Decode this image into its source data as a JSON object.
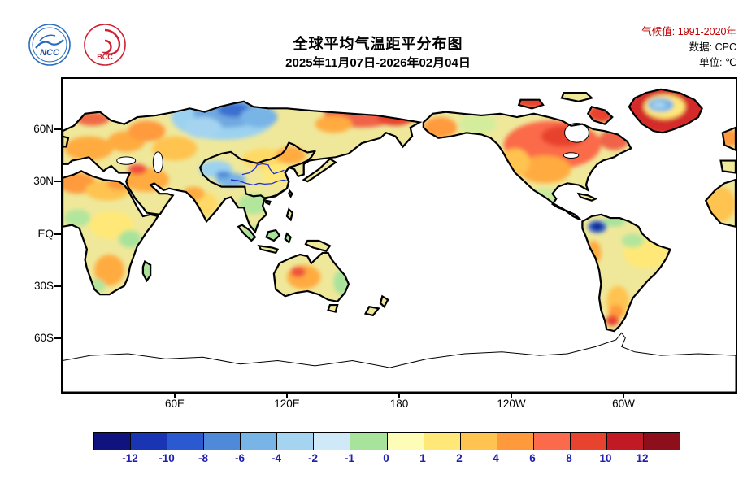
{
  "header": {
    "logos": {
      "ncc": "NCC",
      "bcc": "BCC"
    },
    "title": "全球平均气温距平分布图",
    "subtitle": "2025年11月07日-2026年02月04日",
    "meta": {
      "climate": "气候值:  1991-2020年",
      "data": "数据:  CPC",
      "unit": "单位:  ℃"
    }
  },
  "map": {
    "y_ticks": [
      "60N",
      "30N",
      "EQ",
      "30S",
      "60S"
    ],
    "x_ticks": [
      "60E",
      "120E",
      "180",
      "120W",
      "60W"
    ]
  },
  "colorbar": {
    "labels": [
      "-12",
      "-10",
      "-8",
      "-6",
      "-4",
      "-2",
      "-1",
      "0",
      "1",
      "2",
      "4",
      "6",
      "8",
      "10",
      "12"
    ],
    "colors": [
      "#10127e",
      "#1a35b4",
      "#2b59d0",
      "#4f8ad8",
      "#79b4e6",
      "#a4d4f0",
      "#cfe9f8",
      "#a8e39c",
      "#fdfdb8",
      "#ffe878",
      "#ffc34f",
      "#ff9a3c",
      "#fb6a4a",
      "#e8432f",
      "#c21a24",
      "#8e0f1c"
    ],
    "label_color": "#2020b0",
    "china_border_color": "#000000",
    "river_color": "#2233cc"
  }
}
